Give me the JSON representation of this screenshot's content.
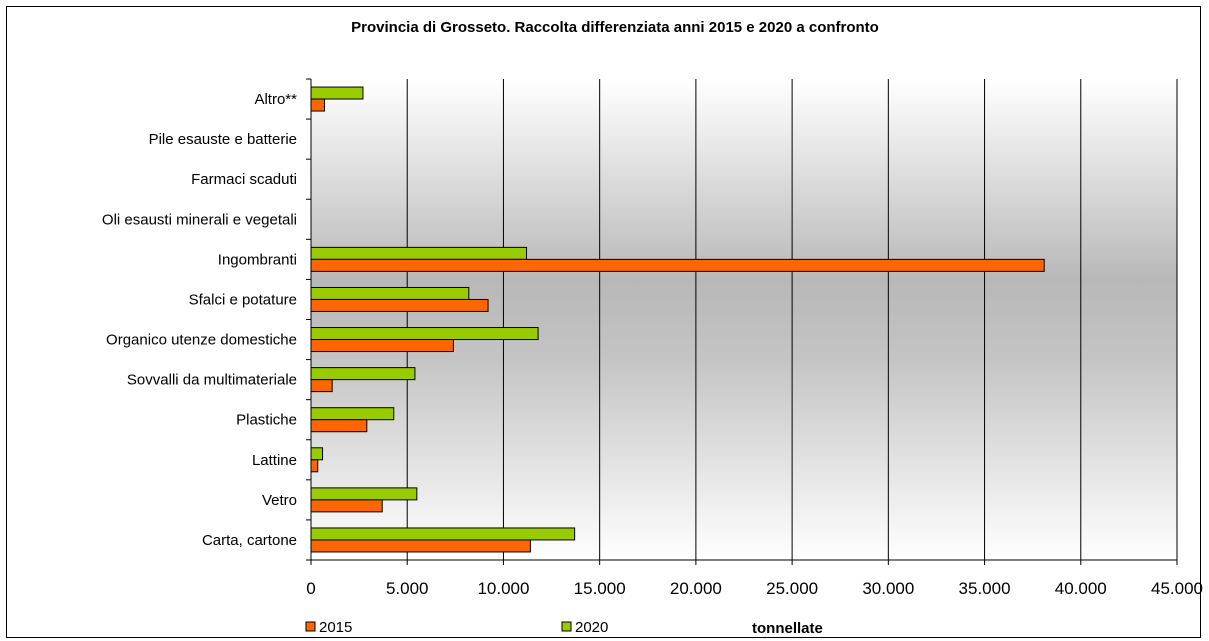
{
  "chart_data": {
    "type": "bar",
    "orientation": "horizontal",
    "title": "Provincia di Grosseto. Raccolta differenziata anni 2015 e 2020 a confronto",
    "xlabel": "tonnellate",
    "ylabel": "",
    "xlim": [
      0,
      45000
    ],
    "x_ticks": [
      "0",
      "5.000",
      "10.000",
      "15.000",
      "20.000",
      "25.000",
      "30.000",
      "35.000",
      "40.000",
      "45.000"
    ],
    "grid": "vertical",
    "legend_position": "bottom",
    "categories": [
      "Altro**",
      "Pile esauste e batterie",
      "Farmaci scaduti",
      "Oli esausti minerali e vegetali",
      "Ingombranti",
      "Sfalci e potature",
      "Organico utenze domestiche",
      "Sovvalli da multimateriale",
      "Plastiche",
      "Lattine",
      "Vetro",
      "Carta, cartone"
    ],
    "series": [
      {
        "name": "2015",
        "color": "#ff6600",
        "values": [
          700,
          0,
          0,
          0,
          38100,
          9200,
          7400,
          1100,
          2900,
          350,
          3700,
          11400
        ]
      },
      {
        "name": "2020",
        "color": "#99cc00",
        "values": [
          2700,
          0,
          0,
          0,
          11200,
          8200,
          11800,
          5400,
          4300,
          600,
          5500,
          13700
        ]
      }
    ]
  }
}
